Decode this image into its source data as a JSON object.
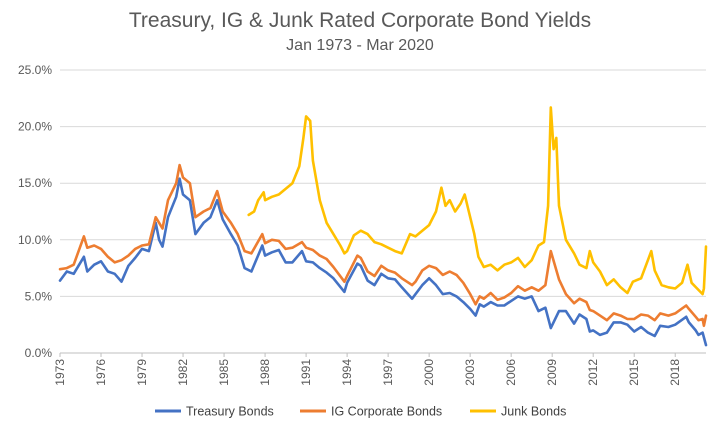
{
  "chart_data": {
    "type": "line",
    "title": "Treasury, IG & Junk Rated Corporate Bond Yields",
    "subtitle": "Jan 1973 - Mar 2020",
    "xlabel": "",
    "ylabel": "",
    "xlim": [
      1973,
      2020.25
    ],
    "ylim": [
      0,
      25
    ],
    "y_ticks": [
      0,
      5,
      10,
      15,
      20,
      25
    ],
    "y_tick_labels": [
      "0.0%",
      "5.0%",
      "10.0%",
      "15.0%",
      "20.0%",
      "25.0%"
    ],
    "x_ticks": [
      1973,
      1976,
      1979,
      1982,
      1985,
      1988,
      1991,
      1994,
      1997,
      2000,
      2003,
      2006,
      2009,
      2012,
      2015,
      2018
    ],
    "x_tick_labels": [
      "1973",
      "1976",
      "1979",
      "1982",
      "1985",
      "1988",
      "1991",
      "1994",
      "1997",
      "2000",
      "2003",
      "2006",
      "2009",
      "2012",
      "2015",
      "2018"
    ],
    "grid": true,
    "legend_position": "bottom",
    "series": [
      {
        "name": "Treasury Bonds",
        "color": "#4472C4",
        "points": [
          [
            1973,
            6.4
          ],
          [
            1973.5,
            7.2
          ],
          [
            1974,
            7.0
          ],
          [
            1974.75,
            8.5
          ],
          [
            1975,
            7.2
          ],
          [
            1975.5,
            7.8
          ],
          [
            1976,
            8.1
          ],
          [
            1976.5,
            7.2
          ],
          [
            1977,
            7.0
          ],
          [
            1977.5,
            6.3
          ],
          [
            1978,
            7.7
          ],
          [
            1978.5,
            8.4
          ],
          [
            1979,
            9.2
          ],
          [
            1979.5,
            9.0
          ],
          [
            1980,
            11.5
          ],
          [
            1980.25,
            10.0
          ],
          [
            1980.5,
            9.4
          ],
          [
            1980.9,
            12.0
          ],
          [
            1981.5,
            13.8
          ],
          [
            1981.75,
            15.4
          ],
          [
            1982,
            14.0
          ],
          [
            1982.5,
            13.5
          ],
          [
            1982.9,
            10.5
          ],
          [
            1983.5,
            11.5
          ],
          [
            1984,
            12.0
          ],
          [
            1984.5,
            13.5
          ],
          [
            1984.9,
            11.8
          ],
          [
            1985.5,
            10.5
          ],
          [
            1986,
            9.5
          ],
          [
            1986.5,
            7.5
          ],
          [
            1987,
            7.2
          ],
          [
            1987.8,
            9.5
          ],
          [
            1988,
            8.6
          ],
          [
            1988.5,
            8.9
          ],
          [
            1989,
            9.1
          ],
          [
            1989.5,
            8.0
          ],
          [
            1990,
            8.0
          ],
          [
            1990.7,
            9.0
          ],
          [
            1991,
            8.1
          ],
          [
            1991.5,
            8.0
          ],
          [
            1992,
            7.5
          ],
          [
            1992.5,
            7.1
          ],
          [
            1993,
            6.6
          ],
          [
            1993.8,
            5.4
          ],
          [
            1994,
            6.2
          ],
          [
            1994.75,
            7.9
          ],
          [
            1995,
            7.7
          ],
          [
            1995.5,
            6.4
          ],
          [
            1996,
            6.0
          ],
          [
            1996.5,
            7.0
          ],
          [
            1997,
            6.6
          ],
          [
            1997.5,
            6.5
          ],
          [
            1998,
            5.8
          ],
          [
            1998.75,
            4.8
          ],
          [
            1999,
            5.2
          ],
          [
            1999.5,
            6.0
          ],
          [
            2000,
            6.6
          ],
          [
            2000.5,
            6.0
          ],
          [
            2001,
            5.2
          ],
          [
            2001.5,
            5.3
          ],
          [
            2002,
            5.0
          ],
          [
            2002.5,
            4.5
          ],
          [
            2003,
            3.9
          ],
          [
            2003.4,
            3.3
          ],
          [
            2003.7,
            4.3
          ],
          [
            2004,
            4.1
          ],
          [
            2004.5,
            4.5
          ],
          [
            2005,
            4.2
          ],
          [
            2005.5,
            4.2
          ],
          [
            2006,
            4.6
          ],
          [
            2006.5,
            5.0
          ],
          [
            2007,
            4.8
          ],
          [
            2007.5,
            5.0
          ],
          [
            2008,
            3.7
          ],
          [
            2008.5,
            4.0
          ],
          [
            2008.9,
            2.2
          ],
          [
            2009.5,
            3.7
          ],
          [
            2010,
            3.7
          ],
          [
            2010.6,
            2.6
          ],
          [
            2011,
            3.4
          ],
          [
            2011.5,
            3.0
          ],
          [
            2011.75,
            1.9
          ],
          [
            2012,
            2.0
          ],
          [
            2012.5,
            1.6
          ],
          [
            2013,
            1.8
          ],
          [
            2013.5,
            2.7
          ],
          [
            2014,
            2.7
          ],
          [
            2014.5,
            2.5
          ],
          [
            2015,
            1.9
          ],
          [
            2015.5,
            2.3
          ],
          [
            2016,
            1.8
          ],
          [
            2016.5,
            1.5
          ],
          [
            2016.9,
            2.4
          ],
          [
            2017.5,
            2.3
          ],
          [
            2018,
            2.5
          ],
          [
            2018.8,
            3.2
          ],
          [
            2019,
            2.7
          ],
          [
            2019.5,
            2.0
          ],
          [
            2019.7,
            1.6
          ],
          [
            2020,
            1.8
          ],
          [
            2020.25,
            0.7
          ]
        ]
      },
      {
        "name": "IG Corporate Bonds",
        "color": "#ED7D31",
        "points": [
          [
            1973,
            7.4
          ],
          [
            1973.5,
            7.5
          ],
          [
            1974,
            7.8
          ],
          [
            1974.75,
            10.3
          ],
          [
            1975,
            9.3
          ],
          [
            1975.5,
            9.5
          ],
          [
            1976,
            9.2
          ],
          [
            1976.5,
            8.5
          ],
          [
            1977,
            8.0
          ],
          [
            1977.5,
            8.2
          ],
          [
            1978,
            8.6
          ],
          [
            1978.5,
            9.2
          ],
          [
            1979,
            9.5
          ],
          [
            1979.5,
            9.6
          ],
          [
            1980,
            12.0
          ],
          [
            1980.25,
            11.5
          ],
          [
            1980.5,
            11.0
          ],
          [
            1980.9,
            13.5
          ],
          [
            1981.5,
            15.0
          ],
          [
            1981.75,
            16.6
          ],
          [
            1982,
            15.5
          ],
          [
            1982.5,
            15.0
          ],
          [
            1982.9,
            12.0
          ],
          [
            1983.5,
            12.5
          ],
          [
            1984,
            12.8
          ],
          [
            1984.5,
            14.3
          ],
          [
            1984.9,
            12.5
          ],
          [
            1985.5,
            11.5
          ],
          [
            1986,
            10.5
          ],
          [
            1986.5,
            9.0
          ],
          [
            1987,
            8.8
          ],
          [
            1987.8,
            10.5
          ],
          [
            1988,
            9.7
          ],
          [
            1988.5,
            10.0
          ],
          [
            1989,
            9.9
          ],
          [
            1989.5,
            9.2
          ],
          [
            1990,
            9.3
          ],
          [
            1990.7,
            9.8
          ],
          [
            1991,
            9.3
          ],
          [
            1991.5,
            9.1
          ],
          [
            1992,
            8.6
          ],
          [
            1992.5,
            8.3
          ],
          [
            1993,
            7.6
          ],
          [
            1993.8,
            6.3
          ],
          [
            1994,
            6.8
          ],
          [
            1994.75,
            8.6
          ],
          [
            1995,
            8.4
          ],
          [
            1995.5,
            7.2
          ],
          [
            1996,
            6.8
          ],
          [
            1996.5,
            7.7
          ],
          [
            1997,
            7.3
          ],
          [
            1997.5,
            7.1
          ],
          [
            1998,
            6.6
          ],
          [
            1998.75,
            6.0
          ],
          [
            1999,
            6.3
          ],
          [
            1999.5,
            7.3
          ],
          [
            2000,
            7.7
          ],
          [
            2000.5,
            7.5
          ],
          [
            2001,
            6.9
          ],
          [
            2001.5,
            7.2
          ],
          [
            2002,
            6.9
          ],
          [
            2002.5,
            6.2
          ],
          [
            2003,
            5.2
          ],
          [
            2003.4,
            4.3
          ],
          [
            2003.7,
            5.0
          ],
          [
            2004,
            4.8
          ],
          [
            2004.5,
            5.3
          ],
          [
            2005,
            4.7
          ],
          [
            2005.5,
            4.9
          ],
          [
            2006,
            5.3
          ],
          [
            2006.5,
            5.9
          ],
          [
            2007,
            5.5
          ],
          [
            2007.5,
            5.8
          ],
          [
            2008,
            5.5
          ],
          [
            2008.5,
            6.0
          ],
          [
            2008.9,
            9.0
          ],
          [
            2009.5,
            6.5
          ],
          [
            2010,
            5.2
          ],
          [
            2010.6,
            4.4
          ],
          [
            2011,
            4.8
          ],
          [
            2011.5,
            4.5
          ],
          [
            2011.75,
            3.8
          ],
          [
            2012,
            3.7
          ],
          [
            2012.5,
            3.3
          ],
          [
            2013,
            2.9
          ],
          [
            2013.5,
            3.5
          ],
          [
            2014,
            3.3
          ],
          [
            2014.5,
            3.0
          ],
          [
            2015,
            3.0
          ],
          [
            2015.5,
            3.4
          ],
          [
            2016,
            3.3
          ],
          [
            2016.5,
            2.9
          ],
          [
            2016.9,
            3.5
          ],
          [
            2017.5,
            3.3
          ],
          [
            2018,
            3.5
          ],
          [
            2018.8,
            4.2
          ],
          [
            2019,
            3.9
          ],
          [
            2019.5,
            3.2
          ],
          [
            2019.7,
            2.9
          ],
          [
            2020,
            3.0
          ],
          [
            2020.1,
            2.4
          ],
          [
            2020.25,
            3.3
          ]
        ]
      },
      {
        "name": "Junk Bonds",
        "color": "#FFC000",
        "points": [
          [
            1986.8,
            12.2
          ],
          [
            1987.2,
            12.5
          ],
          [
            1987.5,
            13.5
          ],
          [
            1987.9,
            14.2
          ],
          [
            1988,
            13.5
          ],
          [
            1988.5,
            13.8
          ],
          [
            1989,
            14.0
          ],
          [
            1989.5,
            14.5
          ],
          [
            1990,
            15.0
          ],
          [
            1990.5,
            16.5
          ],
          [
            1990.8,
            19.0
          ],
          [
            1991,
            20.9
          ],
          [
            1991.3,
            20.5
          ],
          [
            1991.5,
            17.0
          ],
          [
            1992,
            13.5
          ],
          [
            1992.5,
            11.5
          ],
          [
            1993,
            10.5
          ],
          [
            1993.5,
            9.5
          ],
          [
            1993.8,
            8.8
          ],
          [
            1994,
            9.0
          ],
          [
            1994.5,
            10.4
          ],
          [
            1995,
            10.8
          ],
          [
            1995.5,
            10.5
          ],
          [
            1996,
            9.8
          ],
          [
            1996.5,
            9.6
          ],
          [
            1997,
            9.3
          ],
          [
            1997.5,
            9.0
          ],
          [
            1998,
            8.8
          ],
          [
            1998.6,
            10.5
          ],
          [
            1999,
            10.3
          ],
          [
            1999.5,
            10.8
          ],
          [
            2000,
            11.3
          ],
          [
            2000.5,
            12.5
          ],
          [
            2000.9,
            14.6
          ],
          [
            2001.2,
            13.0
          ],
          [
            2001.5,
            13.5
          ],
          [
            2001.9,
            12.5
          ],
          [
            2002.3,
            13.2
          ],
          [
            2002.6,
            14.0
          ],
          [
            2002.9,
            12.5
          ],
          [
            2003.3,
            10.5
          ],
          [
            2003.6,
            8.5
          ],
          [
            2004,
            7.6
          ],
          [
            2004.5,
            7.8
          ],
          [
            2005,
            7.3
          ],
          [
            2005.5,
            7.8
          ],
          [
            2006,
            8.0
          ],
          [
            2006.5,
            8.4
          ],
          [
            2007,
            7.6
          ],
          [
            2007.5,
            8.2
          ],
          [
            2008,
            9.5
          ],
          [
            2008.4,
            9.8
          ],
          [
            2008.7,
            13.0
          ],
          [
            2008.9,
            21.7
          ],
          [
            2009.1,
            18.0
          ],
          [
            2009.3,
            19.0
          ],
          [
            2009.5,
            13.0
          ],
          [
            2010,
            10.0
          ],
          [
            2010.6,
            8.8
          ],
          [
            2011,
            7.8
          ],
          [
            2011.5,
            7.5
          ],
          [
            2011.75,
            9.0
          ],
          [
            2012,
            8.0
          ],
          [
            2012.5,
            7.2
          ],
          [
            2013,
            6.0
          ],
          [
            2013.5,
            6.5
          ],
          [
            2014,
            5.8
          ],
          [
            2014.5,
            5.3
          ],
          [
            2014.9,
            6.3
          ],
          [
            2015.5,
            6.6
          ],
          [
            2016,
            8.2
          ],
          [
            2016.25,
            9.0
          ],
          [
            2016.5,
            7.3
          ],
          [
            2017,
            6.0
          ],
          [
            2017.5,
            5.8
          ],
          [
            2018,
            5.7
          ],
          [
            2018.5,
            6.2
          ],
          [
            2018.9,
            7.8
          ],
          [
            2019.2,
            6.2
          ],
          [
            2019.6,
            5.7
          ],
          [
            2020,
            5.2
          ],
          [
            2020.1,
            5.7
          ],
          [
            2020.25,
            9.4
          ]
        ]
      }
    ]
  }
}
